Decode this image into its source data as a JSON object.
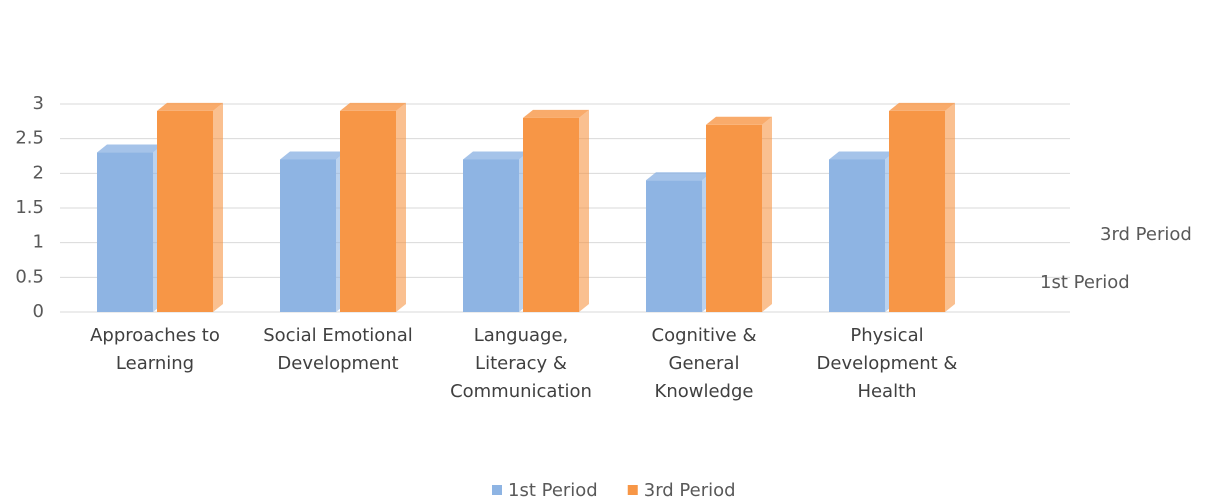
{
  "chart_data": {
    "type": "bar",
    "categories": [
      "Approaches to Learning",
      "Social Emotional Development",
      "Language, Literacy & Communication",
      "Cognitive & General Knowledge",
      "Physical Development & Health"
    ],
    "series": [
      {
        "name": "1st Period",
        "color": "#8eb4e3",
        "values": [
          2.3,
          2.2,
          2.2,
          1.9,
          2.2
        ]
      },
      {
        "name": "3rd Period",
        "color": "#f79646",
        "values": [
          2.9,
          2.9,
          2.8,
          2.7,
          2.9
        ]
      }
    ],
    "ylim": [
      0,
      3
    ],
    "yticks": [
      0,
      0.5,
      1,
      1.5,
      2,
      2.5,
      3
    ],
    "grid": true,
    "legend": "bottom"
  }
}
